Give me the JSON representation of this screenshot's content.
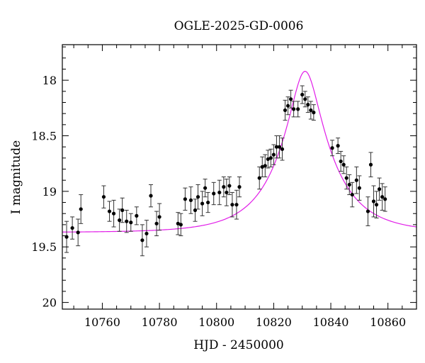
{
  "chart_data": {
    "type": "scatter",
    "title": "OGLE-2025-GD-0006",
    "xlabel": "HJD - 2450000",
    "ylabel": "I magnitude",
    "xlim": [
      10746,
      10870
    ],
    "ylim": [
      20.06,
      17.68
    ],
    "y_inverted": true,
    "x_ticks": [
      10760,
      10780,
      10800,
      10820,
      10840,
      10860
    ],
    "y_ticks": [
      18,
      18.5,
      19,
      19.5,
      20
    ],
    "y_tick_labels": [
      "18",
      "18.5",
      "19",
      "19.5",
      "20"
    ],
    "grid": false,
    "series": [
      {
        "kind": "points_with_errorbars",
        "color": "#000000",
        "x": [
          10747.5,
          10749.5,
          10751.5,
          10752.5,
          10760.5,
          10762.5,
          10764.0,
          10766.0,
          10767.0,
          10768.5,
          10770.0,
          10772.0,
          10774.0,
          10775.5,
          10777.0,
          10779.0,
          10780.0,
          10786.5,
          10787.5,
          10789.0,
          10791.0,
          10792.5,
          10793.5,
          10795.0,
          10796.0,
          10797.0,
          10799.0,
          10801.0,
          10802.5,
          10803.5,
          10804.5,
          10805.5,
          10807.0,
          10808.0,
          10815.0,
          10816.0,
          10817.0,
          10818.0,
          10819.0,
          10820.0,
          10821.0,
          10822.0,
          10823.0,
          10824.0,
          10825.0,
          10826.0,
          10827.0,
          10828.5,
          10830.0,
          10831.0,
          10832.0,
          10833.0,
          10834.0,
          10840.5,
          10842.5,
          10843.5,
          10844.5,
          10845.5,
          10846.5,
          10847.5,
          10849.0,
          10850.0,
          10853.0,
          10854.0,
          10855.0,
          10856.0,
          10857.0,
          10858.0,
          10859.0
        ],
        "y": [
          19.41,
          19.33,
          19.37,
          19.16,
          19.05,
          19.18,
          19.2,
          19.26,
          19.17,
          19.27,
          19.28,
          19.22,
          19.44,
          19.38,
          19.04,
          19.29,
          19.23,
          19.29,
          19.3,
          19.07,
          19.08,
          19.17,
          19.05,
          19.11,
          18.97,
          19.1,
          19.02,
          19.01,
          18.96,
          19.01,
          18.95,
          19.12,
          19.12,
          18.96,
          18.88,
          18.78,
          18.77,
          18.71,
          18.7,
          18.67,
          18.6,
          18.6,
          18.62,
          18.27,
          18.23,
          18.17,
          18.26,
          18.26,
          18.13,
          18.17,
          18.22,
          18.27,
          18.29,
          18.61,
          18.59,
          18.73,
          18.76,
          18.88,
          18.94,
          19.03,
          18.9,
          18.97,
          19.18,
          18.76,
          19.09,
          19.12,
          18.98,
          19.05,
          19.07
        ],
        "yerr": [
          0.14,
          0.1,
          0.12,
          0.13,
          0.1,
          0.09,
          0.12,
          0.1,
          0.11,
          0.1,
          0.08,
          0.08,
          0.14,
          0.12,
          0.1,
          0.11,
          0.12,
          0.1,
          0.1,
          0.1,
          0.12,
          0.1,
          0.11,
          0.11,
          0.08,
          0.09,
          0.1,
          0.11,
          0.09,
          0.12,
          0.08,
          0.11,
          0.13,
          0.09,
          0.1,
          0.09,
          0.1,
          0.08,
          0.08,
          0.09,
          0.1,
          0.1,
          0.1,
          0.09,
          0.08,
          0.08,
          0.07,
          0.07,
          0.08,
          0.07,
          0.07,
          0.08,
          0.07,
          0.07,
          0.07,
          0.09,
          0.08,
          0.1,
          0.09,
          0.11,
          0.12,
          0.11,
          0.13,
          0.11,
          0.14,
          0.12,
          0.1,
          0.12,
          0.11
        ]
      },
      {
        "kind": "model_curve",
        "color": "#e11de8",
        "baseline_mag": 19.37,
        "t0": 10831,
        "tE": 18,
        "u0": 0.27
      }
    ]
  }
}
